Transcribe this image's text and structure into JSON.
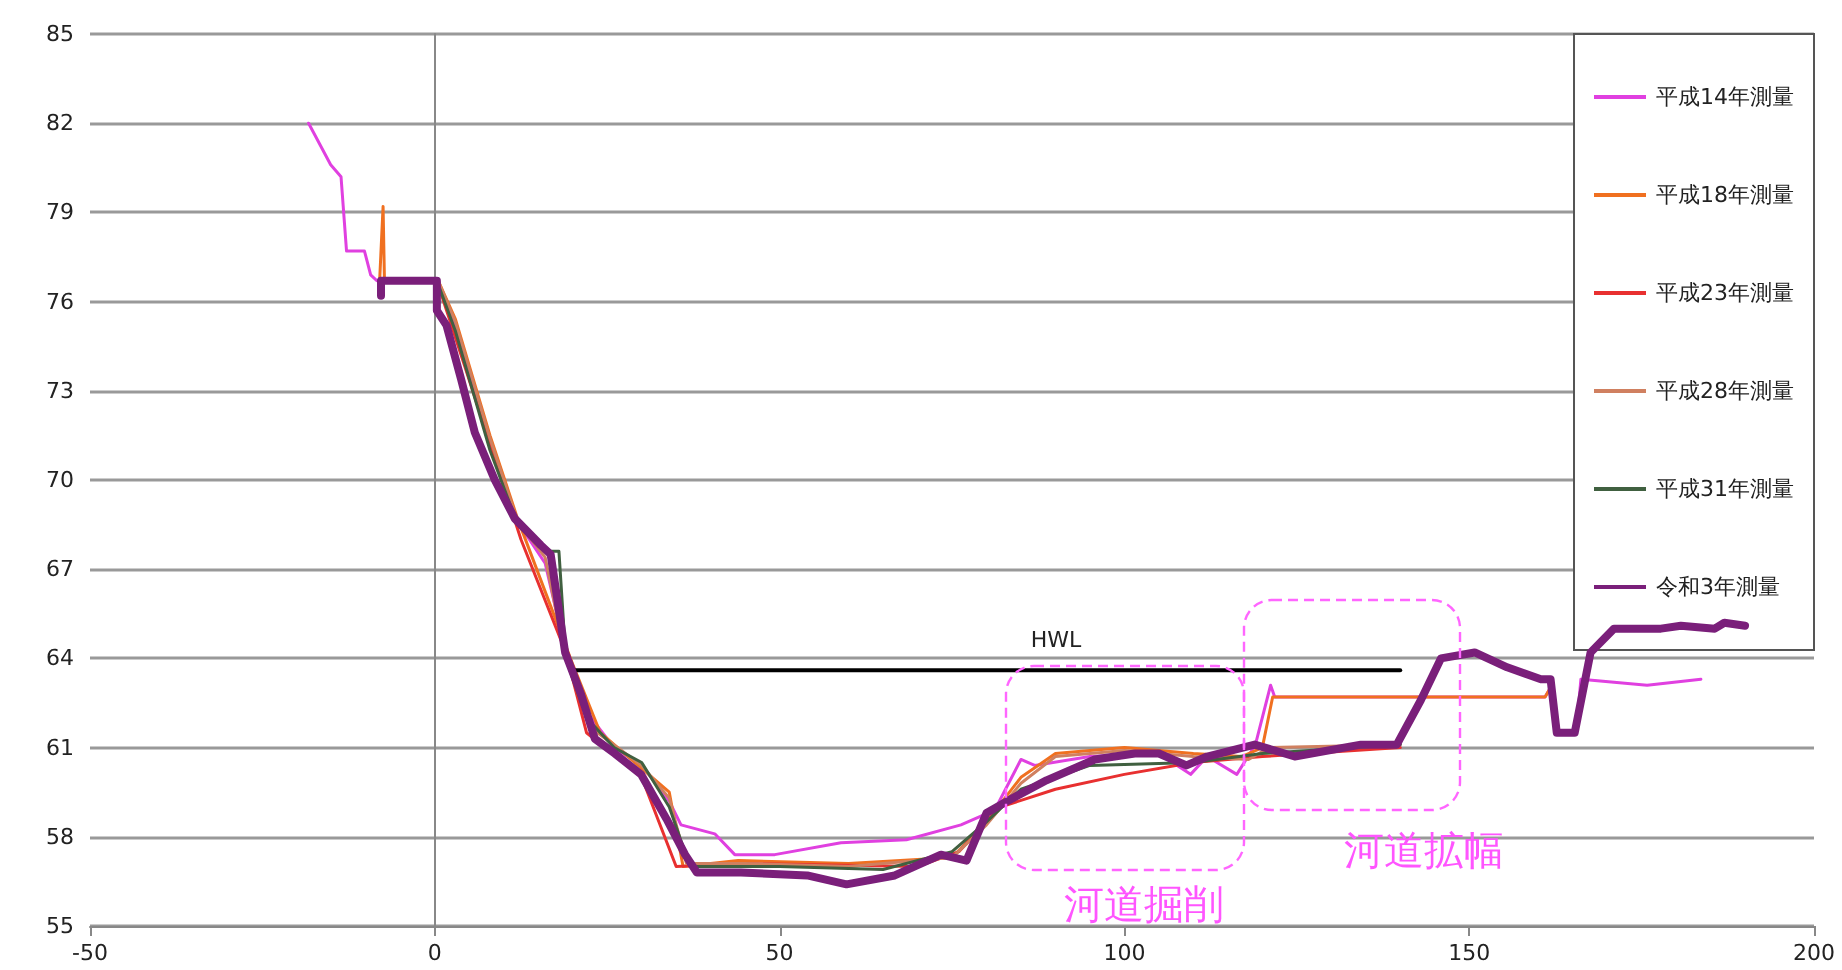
{
  "chart_data": {
    "type": "line",
    "xlim": [
      -50,
      200
    ],
    "xticks": [
      -50,
      0,
      50,
      100,
      150,
      200
    ],
    "ylim": [
      55,
      85
    ],
    "yticks": [
      55,
      58,
      61,
      64,
      67,
      70,
      73,
      76,
      79,
      82,
      85
    ],
    "grid": "y",
    "legend": "top right",
    "marker": "none",
    "line_style": "solid",
    "annotations": [
      "HWL",
      "河道掘削",
      "河道拡幅"
    ],
    "series": [
      {
        "name": "平成14年測量",
        "color": "#e040e0",
        "x": [
          -18.3,
          -15.1,
          -13.6,
          -12.8,
          -10.2,
          -9.3,
          -8.4,
          0.3,
          3,
          8,
          12,
          16,
          19,
          22,
          26,
          30,
          34,
          35.7,
          40.6,
          43.5,
          49.3,
          58.9,
          68.4,
          76.3,
          81.2,
          85,
          87,
          95,
          105,
          109.6,
          112,
          116.3,
          119,
          121.2,
          121.8,
          161,
          162,
          163,
          165.5,
          166.2,
          175.8,
          183.6
        ],
        "values": [
          82.0,
          80.6,
          80.2,
          77.7,
          77.7,
          76.9,
          76.7,
          76.7,
          75.2,
          71.3,
          68.6,
          67.2,
          64.2,
          62.2,
          61.0,
          60.4,
          59.2,
          58.4,
          58.1,
          57.4,
          57.4,
          57.8,
          57.9,
          58.4,
          58.9,
          60.6,
          60.4,
          60.7,
          60.8,
          60.1,
          60.7,
          60.1,
          61.1,
          63.1,
          62.7,
          62.7,
          63.1,
          61.5,
          61.5,
          63.3,
          63.1,
          63.3
        ]
      },
      {
        "name": "平成18年測量",
        "color": "#f07020",
        "x": [
          -8,
          -7.5,
          -7.3,
          0.5,
          3,
          8,
          12,
          20,
          24,
          30,
          34,
          36,
          44,
          60,
          75,
          80,
          85,
          90,
          100,
          110,
          117,
          120,
          121.5,
          161,
          162,
          163
        ],
        "values": [
          76.7,
          79.2,
          76.7,
          76.7,
          75.4,
          71.5,
          68.7,
          63.8,
          61.5,
          60.3,
          59.5,
          57.0,
          57.2,
          57.1,
          57.3,
          58.5,
          60.0,
          60.8,
          61.0,
          60.8,
          60.7,
          61.0,
          62.7,
          62.7,
          63.1,
          61.5
        ]
      },
      {
        "name": "平成23年測量",
        "color": "#e83030",
        "x": [
          -8,
          0.3,
          2,
          12.5,
          19,
          22,
          30,
          35,
          45,
          70,
          76,
          82,
          90,
          100,
          110,
          120,
          140
        ],
        "values": [
          76.7,
          76.7,
          75.5,
          68.0,
          64.2,
          61.5,
          60.0,
          57.0,
          57.1,
          57.0,
          57.5,
          59.0,
          59.6,
          60.1,
          60.5,
          60.7,
          61.0
        ]
      },
      {
        "name": "平成28年測量",
        "color": "#d08060",
        "x": [
          -8,
          0.5,
          3,
          8,
          12,
          16,
          19,
          23,
          30,
          34,
          36.5,
          45,
          60,
          75,
          80,
          85,
          90,
          100,
          110,
          118,
          121,
          140
        ],
        "values": [
          76.7,
          76.7,
          75.3,
          71.4,
          68.6,
          67.4,
          64.0,
          61.6,
          60.4,
          59.3,
          57.1,
          57.1,
          57.0,
          57.3,
          58.4,
          59.8,
          60.7,
          60.9,
          60.7,
          60.6,
          61.0,
          61.1
        ]
      },
      {
        "name": "平成31年測量",
        "color": "#406040",
        "x": [
          -8,
          0.3,
          3,
          8,
          12,
          16,
          18,
          19,
          22,
          26,
          30,
          34,
          37,
          50,
          65,
          75,
          80,
          85,
          95,
          110,
          120,
          140
        ],
        "values": [
          76.7,
          76.7,
          75.0,
          71.0,
          68.5,
          67.6,
          67.6,
          64.0,
          62.0,
          61.0,
          60.5,
          59.0,
          57.0,
          57.0,
          56.9,
          57.5,
          58.5,
          59.6,
          60.4,
          60.5,
          60.8,
          61.1
        ]
      },
      {
        "name": "令和3年測量",
        "color": "#7a1f7a",
        "x": [
          -7.8,
          -7.8,
          0.3,
          0.3,
          1.7,
          3.8,
          5.8,
          8.7,
          11.6,
          15.4,
          16.8,
          18.9,
          21.2,
          23.2,
          26.1,
          29.9,
          33.6,
          36.3,
          38,
          44.4,
          54,
          59.7,
          66.7,
          73.4,
          77.1,
          80,
          83,
          88.7,
          95.7,
          101.5,
          105,
          109,
          112,
          118.9,
          124.7,
          134.3,
          139.5,
          143,
          145.9,
          150.8,
          155.5,
          160.4,
          161.8,
          162.7,
          165.3,
          167.6,
          171,
          177.8,
          180.7,
          185.6,
          187,
          190
        ],
        "values": [
          76.2,
          76.7,
          76.7,
          75.7,
          75.2,
          73.4,
          71.6,
          70.0,
          68.7,
          67.8,
          67.5,
          64.2,
          62.8,
          61.3,
          60.8,
          60.1,
          58.6,
          57.4,
          56.8,
          56.8,
          56.7,
          56.4,
          56.7,
          57.4,
          57.2,
          58.8,
          59.2,
          59.9,
          60.6,
          60.8,
          60.8,
          60.4,
          60.7,
          61.1,
          60.7,
          61.1,
          61.1,
          62.6,
          64.0,
          64.2,
          63.7,
          63.3,
          63.3,
          61.5,
          61.5,
          64.2,
          65.0,
          65.0,
          65.1,
          65.0,
          65.2,
          65.1
        ]
      },
      {
        "color": "#000000",
        "x": [
          20.3,
          140
        ],
        "values": [
          63.6,
          63.6
        ]
      }
    ]
  }
}
